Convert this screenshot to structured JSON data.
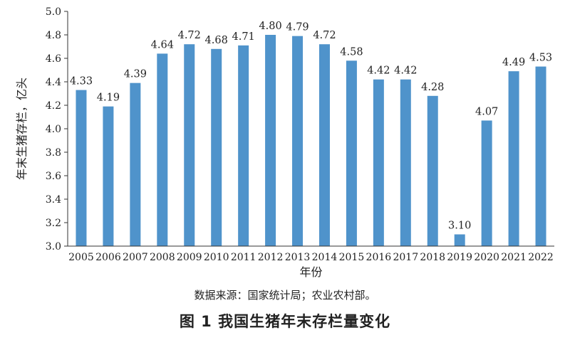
{
  "chart_data": {
    "type": "bar",
    "categories": [
      "2005",
      "2006",
      "2007",
      "2008",
      "2009",
      "2010",
      "2011",
      "2012",
      "2013",
      "2014",
      "2015",
      "2016",
      "2017",
      "2018",
      "2019",
      "2020",
      "2021",
      "2022"
    ],
    "values": [
      4.33,
      4.19,
      4.39,
      4.64,
      4.72,
      4.68,
      4.71,
      4.8,
      4.79,
      4.72,
      4.58,
      4.42,
      4.42,
      4.28,
      3.1,
      4.07,
      4.49,
      4.53
    ],
    "value_labels": [
      "4.33",
      "4.19",
      "4.39",
      "4.64",
      "4.72",
      "4.68",
      "4.71",
      "4.80",
      "4.79",
      "4.72",
      "4.58",
      "4.42",
      "4.42",
      "4.28",
      "3.10",
      "4.07",
      "4.49",
      "4.53"
    ],
    "xlabel": "年份",
    "ylabel": "年末生猪存栏，亿头",
    "ylim": [
      3.0,
      5.0
    ],
    "yticks": [
      "3.0",
      "3.2",
      "3.4",
      "3.6",
      "3.8",
      "4.0",
      "4.2",
      "4.4",
      "4.6",
      "4.8",
      "5.0"
    ],
    "grid": false,
    "bar_color": "#4f93cb"
  },
  "source_note": "数据来源：国家统计局；农业农村部。",
  "caption": "图 1  我国生猪年末存栏量变化"
}
